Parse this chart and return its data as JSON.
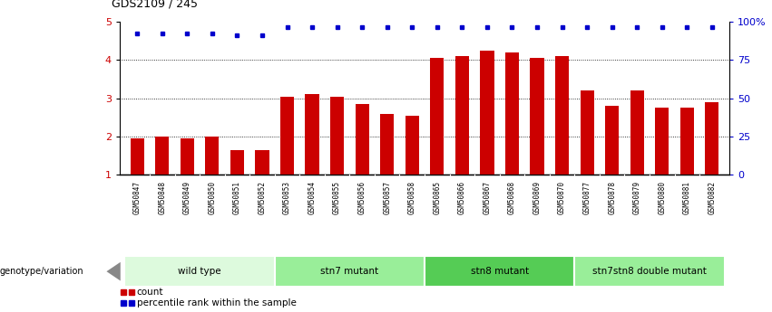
{
  "title": "GDS2109 / 245",
  "samples": [
    "GSM50847",
    "GSM50848",
    "GSM50849",
    "GSM50850",
    "GSM50851",
    "GSM50852",
    "GSM50853",
    "GSM50854",
    "GSM50855",
    "GSM50856",
    "GSM50857",
    "GSM50858",
    "GSM50865",
    "GSM50866",
    "GSM50867",
    "GSM50868",
    "GSM50869",
    "GSM50870",
    "GSM50877",
    "GSM50878",
    "GSM50879",
    "GSM50880",
    "GSM50881",
    "GSM50882"
  ],
  "counts": [
    1.95,
    2.0,
    1.95,
    2.0,
    1.65,
    1.65,
    3.05,
    3.1,
    3.05,
    2.85,
    2.6,
    2.55,
    4.05,
    4.1,
    4.25,
    4.2,
    4.05,
    4.1,
    3.2,
    2.8,
    3.2,
    2.75,
    2.75,
    2.9
  ],
  "percentile_ranks": [
    4.7,
    4.7,
    4.7,
    4.7,
    4.65,
    4.65,
    4.85,
    4.85,
    4.85,
    4.85,
    4.85,
    4.85,
    4.85,
    4.85,
    4.85,
    4.85,
    4.85,
    4.85,
    4.85,
    4.85,
    4.85,
    4.85,
    4.85,
    4.85
  ],
  "bar_color": "#CC0000",
  "dot_color": "#0000CC",
  "ylim_left": [
    1,
    5
  ],
  "ylim_right": [
    0,
    100
  ],
  "yticks_left": [
    1,
    2,
    3,
    4,
    5
  ],
  "ytick_labels_left": [
    "1",
    "2",
    "3",
    "4",
    "5"
  ],
  "yticks_right": [
    0,
    25,
    50,
    75,
    100
  ],
  "ytick_labels_right": [
    "0",
    "25",
    "50",
    "75",
    "100%"
  ],
  "grid_lines": [
    2,
    3,
    4
  ],
  "groups": [
    {
      "label": "wild type",
      "start": 0,
      "end": 6,
      "color": "#DDFADD"
    },
    {
      "label": "stn7 mutant",
      "start": 6,
      "end": 12,
      "color": "#99EE99"
    },
    {
      "label": "stn8 mutant",
      "start": 12,
      "end": 18,
      "color": "#55CC55"
    },
    {
      "label": "stn7stn8 double mutant",
      "start": 18,
      "end": 24,
      "color": "#99EE99"
    }
  ],
  "legend_count_color": "#CC0000",
  "legend_dot_color": "#0000CC",
  "genotype_label": "genotype/variation",
  "tick_area_color": "#C8C8C8",
  "left_ytick_color": "#CC0000",
  "right_ytick_color": "#0000CC"
}
